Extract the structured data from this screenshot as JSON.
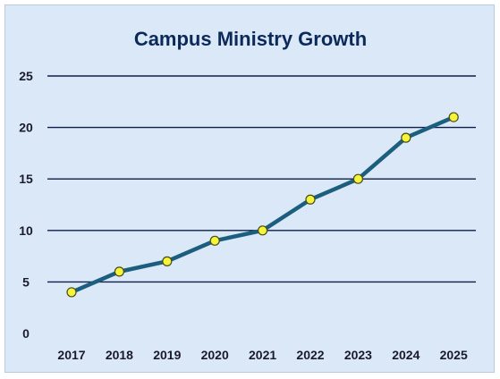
{
  "chart_data": {
    "type": "line",
    "title": "Campus Ministry Growth",
    "xlabel": "",
    "ylabel": "",
    "categories": [
      "2017",
      "2018",
      "2019",
      "2020",
      "2021",
      "2022",
      "2023",
      "2024",
      "2025"
    ],
    "series": [
      {
        "values": [
          4,
          6,
          7,
          9,
          10,
          13,
          15,
          19,
          21
        ]
      }
    ],
    "ylim": [
      0,
      25
    ],
    "yticks": [
      0,
      5,
      10,
      15,
      20,
      25
    ],
    "grid": true,
    "legend": "none",
    "colors": {
      "line": "#1c5e7e",
      "marker_fill": "#f4f53b",
      "marker_stroke": "#4a4a1a",
      "gridline": "#0d1f4a",
      "background": "#dbe8f7"
    }
  }
}
